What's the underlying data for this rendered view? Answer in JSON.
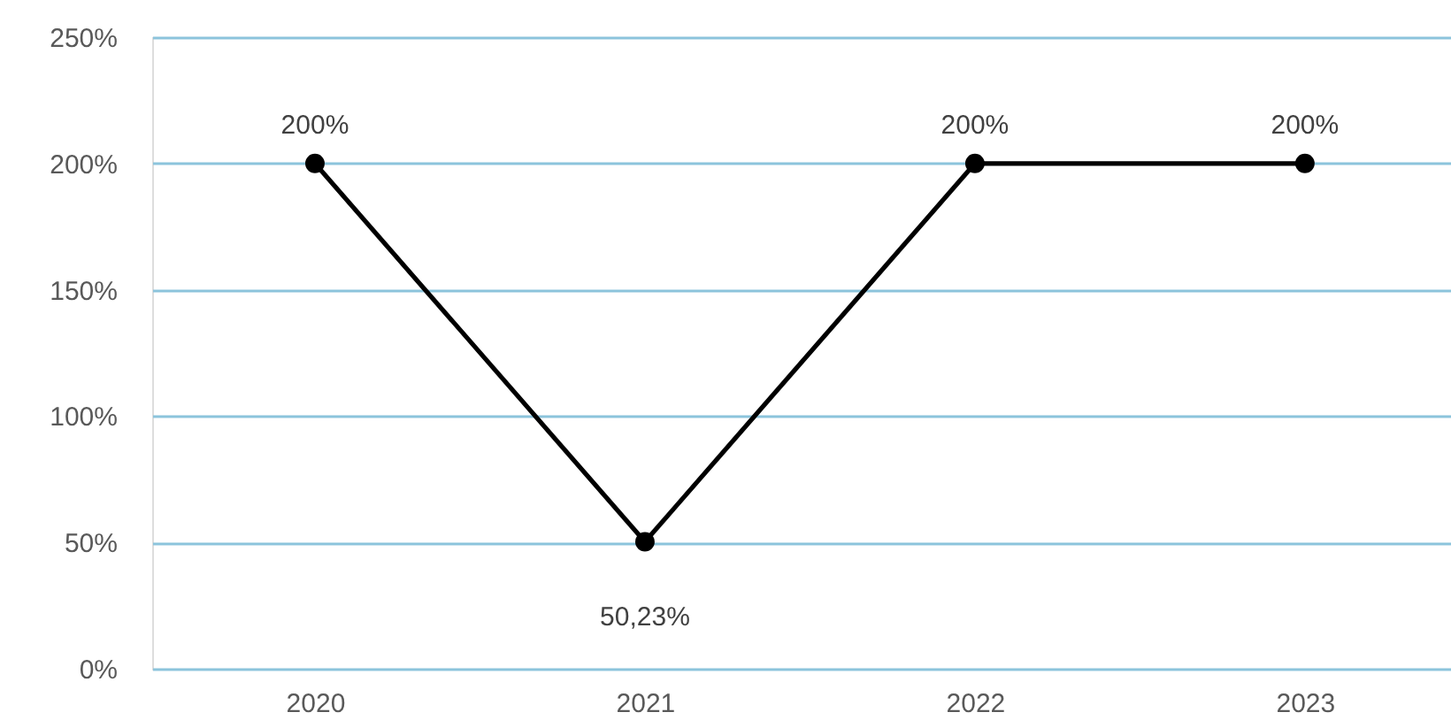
{
  "chart_data": {
    "type": "line",
    "categories": [
      "2020",
      "2021",
      "2022",
      "2023"
    ],
    "series": [
      {
        "color": "#000000",
        "values": [
          200,
          50.23,
          200,
          200
        ],
        "value_labels": [
          "200%",
          "50,23%",
          "200%",
          "200%"
        ]
      }
    ],
    "ylim": [
      0,
      250
    ],
    "yticks": [
      {
        "value": 0,
        "label": "0%"
      },
      {
        "value": 50,
        "label": "50%"
      },
      {
        "value": 100,
        "label": "100%"
      },
      {
        "value": 150,
        "label": "150%"
      },
      {
        "value": 200,
        "label": "200%"
      },
      {
        "value": 250,
        "label": "250%"
      }
    ],
    "grid": "y",
    "marker": "circle",
    "line_style": "solid"
  }
}
